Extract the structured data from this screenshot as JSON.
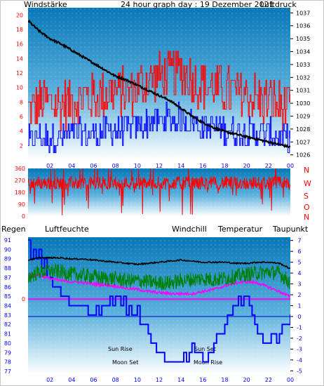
{
  "header": {
    "windstaerke": "Windstärke",
    "title": "24 hour graph day : 19 Dezember 2021",
    "luftdruck": "Luftdruck"
  },
  "legend": {
    "regen": "Regen",
    "luftfeuchte": "Luftfeuchte",
    "windchill": "Windchill",
    "temperatur": "Temperatur",
    "taupunkt": "Taupunkt"
  },
  "colors": {
    "wind_gust": "#ff0000",
    "wind_avg": "#0000ff",
    "pressure": "#000000",
    "direction": "#ff0000",
    "temperature": "#000000",
    "windchill": "#008000",
    "dewpoint": "#ff00ff",
    "humidity": "#0000ff",
    "rain": "#ff00ff",
    "regen_label": "#cc0088",
    "luftfeuchte_label": "#0000cc",
    "axis_red": "#ff0000",
    "axis_blue": "#0000ff",
    "axis_black": "#000000"
  },
  "annotations": {
    "sun_rise": "Sun Rise",
    "sun_set": "Sun Set",
    "moon_set": "Moon Set",
    "moon_rise": "Moon Rise"
  },
  "chart_data": [
    {
      "type": "line",
      "name": "wind-pressure",
      "x_ticks": [
        "02",
        "04",
        "06",
        "08",
        "10",
        "12",
        "14",
        "16",
        "18",
        "20",
        "22",
        "00"
      ],
      "wind_ticks": [
        "20",
        "18",
        "16",
        "14",
        "12",
        "10",
        "8",
        "6",
        "4",
        "2"
      ],
      "pressure_ticks": [
        "1037",
        "1036",
        "1035",
        "1034",
        "1033",
        "1032",
        "1031",
        "1030",
        "1029",
        "1028",
        "1027",
        "1026"
      ],
      "wind_ylim": [
        0,
        21
      ],
      "pressure_ylim": [
        1025.6,
        1037.4
      ],
      "hours": [
        0,
        1,
        2,
        3,
        4,
        5,
        6,
        7,
        8,
        9,
        10,
        11,
        12,
        13,
        14,
        15,
        16,
        17,
        18,
        19,
        20,
        21,
        22,
        23,
        24
      ],
      "pressure": [
        1036.4,
        1035.6,
        1035.0,
        1034.6,
        1034.1,
        1033.6,
        1033.1,
        1032.6,
        1032.1,
        1031.8,
        1031.4,
        1031.0,
        1030.6,
        1030.2,
        1029.6,
        1029.0,
        1028.5,
        1028.1,
        1027.8,
        1027.6,
        1027.4,
        1027.2,
        1027.0,
        1026.8,
        1026.6
      ],
      "gust": [
        6.5,
        8,
        8,
        7.5,
        8,
        8.5,
        8.5,
        9,
        9.5,
        9,
        10,
        11,
        11.5,
        12,
        12,
        11,
        10.5,
        10,
        9.5,
        9,
        9,
        8.5,
        8,
        7.5,
        6.5
      ],
      "avg": [
        3,
        3.5,
        3.5,
        3.5,
        4,
        4,
        4,
        4.5,
        4.5,
        4.5,
        5,
        5.5,
        6,
        6,
        6,
        5.5,
        5,
        5,
        4.5,
        4.5,
        4,
        4,
        4,
        3.5,
        3
      ]
    },
    {
      "type": "line",
      "name": "wind-direction",
      "dir_ticks": [
        "360",
        "270",
        "180",
        "90",
        "0"
      ],
      "compass_labels": [
        "N",
        "W",
        "S",
        "O",
        "N"
      ],
      "ylim": [
        0,
        360
      ],
      "mean_direction": 250
    },
    {
      "type": "line",
      "name": "temperature-humidity",
      "x_ticks": [
        "02",
        "04",
        "06",
        "08",
        "10",
        "12",
        "14",
        "16",
        "18",
        "20",
        "22",
        "00"
      ],
      "humidity_ticks": [
        "91",
        "90",
        "89",
        "88",
        "87",
        "86",
        "85",
        "84",
        "83",
        "82",
        "81",
        "80",
        "79",
        "78",
        "77"
      ],
      "temp_ticks": [
        "7",
        "6",
        "5",
        "4",
        "3",
        "2",
        "1",
        "0",
        "-1",
        "-2",
        "-3",
        "-4",
        "-5"
      ],
      "rain_tick": "0",
      "humidity_ylim": [
        76.7,
        91.3
      ],
      "temp_ylim": [
        -5.3,
        7.3
      ],
      "hours": [
        0,
        1,
        2,
        3,
        4,
        5,
        6,
        7,
        8,
        9,
        10,
        11,
        12,
        13,
        14,
        15,
        16,
        17,
        18,
        19,
        20,
        21,
        22,
        23,
        24
      ],
      "temperature": [
        5.2,
        5.4,
        5.4,
        5.4,
        5.3,
        5.3,
        5.2,
        5.1,
        5.0,
        4.9,
        4.8,
        4.9,
        5.0,
        5.1,
        5.2,
        5.1,
        5.0,
        5.0,
        5.0,
        4.9,
        4.9,
        5.0,
        5.0,
        4.9,
        4.4
      ],
      "windchill": [
        3.6,
        4.1,
        4.2,
        4.1,
        3.9,
        3.8,
        3.7,
        3.5,
        3.5,
        3.3,
        3.3,
        3.2,
        3.1,
        3.1,
        3.3,
        3.4,
        3.5,
        3.4,
        3.5,
        3.7,
        3.9,
        4.0,
        4.1,
        4.0,
        3.1
      ],
      "dewpoint": [
        3.8,
        3.8,
        3.5,
        3.3,
        3.2,
        3.1,
        3.0,
        2.9,
        2.8,
        2.6,
        2.5,
        2.3,
        2.2,
        2.1,
        2.1,
        2.1,
        2.3,
        2.5,
        2.8,
        3.1,
        3.2,
        3.1,
        2.7,
        2.3,
        1.8
      ],
      "humidity": [
        90,
        89,
        87,
        86,
        84,
        84,
        83,
        84,
        85,
        84,
        83,
        81,
        79,
        78,
        78,
        79,
        78,
        80,
        82,
        84,
        85,
        81,
        80,
        81,
        83
      ],
      "rain": 0
    }
  ]
}
